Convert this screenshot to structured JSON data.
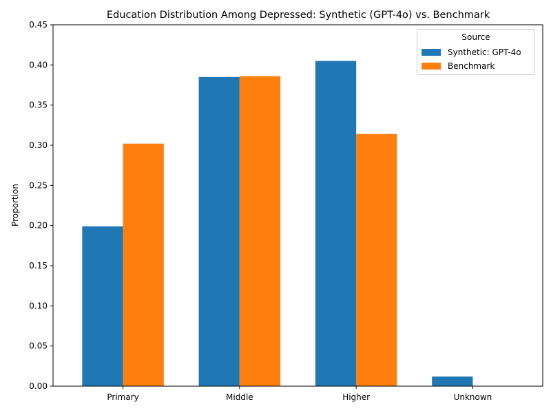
{
  "chart_data": {
    "type": "bar",
    "title": "Education Distribution Among Depressed: Synthetic (GPT-4o) vs. Benchmark",
    "xlabel": "",
    "ylabel": "Proportion",
    "categories": [
      "Primary",
      "Middle",
      "Higher",
      "Unknown"
    ],
    "ylim": [
      0,
      0.45
    ],
    "yticks": [
      0.0,
      0.05,
      0.1,
      0.15,
      0.2,
      0.25,
      0.3,
      0.35,
      0.4,
      0.45
    ],
    "ytick_labels": [
      "0.00",
      "0.05",
      "0.10",
      "0.15",
      "0.20",
      "0.25",
      "0.30",
      "0.35",
      "0.40",
      "0.45"
    ],
    "grid": false,
    "legend": {
      "title": "Source",
      "placement": "top-right"
    },
    "series": [
      {
        "name": "Synthetic: GPT-4o",
        "color": "#1f77b4",
        "values": [
          0.199,
          0.385,
          0.405,
          0.012
        ]
      },
      {
        "name": "Benchmark",
        "color": "#ff7f0e",
        "values": [
          0.302,
          0.386,
          0.314,
          0.0
        ]
      }
    ]
  }
}
